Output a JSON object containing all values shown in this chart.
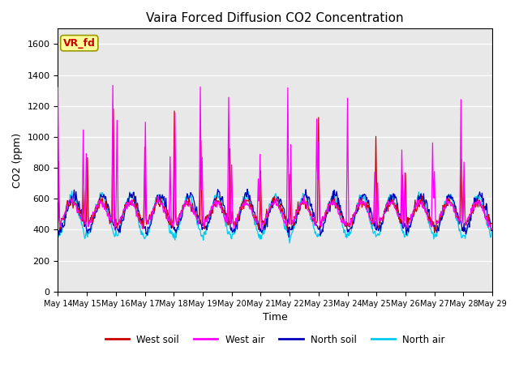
{
  "title": "Vaira Forced Diffusion CO2 Concentration",
  "xlabel": "Time",
  "ylabel": "CO2 (ppm)",
  "ylim": [
    0,
    1700
  ],
  "yticks": [
    0,
    200,
    400,
    600,
    800,
    1000,
    1200,
    1400,
    1600
  ],
  "legend_labels": [
    "West soil",
    "West air",
    "North soil",
    "North air"
  ],
  "legend_colors": [
    "#cc0000",
    "#ff00ff",
    "#0000bb",
    "#00ccee"
  ],
  "line_colors": {
    "west_soil": "#cc0000",
    "west_air": "#ff00ff",
    "north_soil": "#0000bb",
    "north_air": "#00ccee"
  },
  "annotation_text": "VR_fd",
  "annotation_color": "#cc0000",
  "annotation_bg": "#ffff99",
  "annotation_border": "#999900",
  "background_color": "#e8e8e8",
  "n_days": 15,
  "points_per_day": 48,
  "figsize": [
    6.4,
    4.8
  ],
  "dpi": 100
}
